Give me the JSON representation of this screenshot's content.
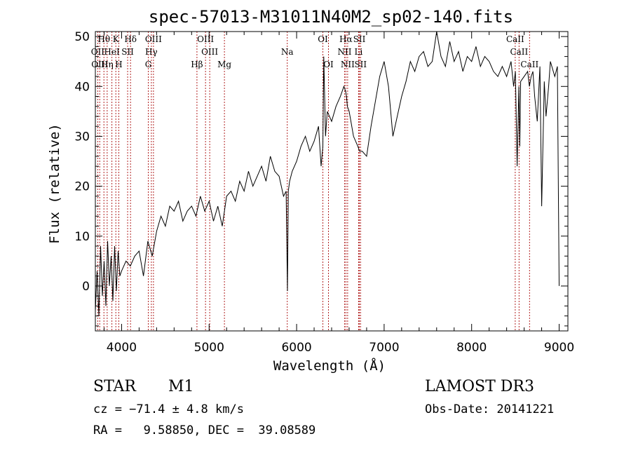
{
  "chart_data": {
    "type": "line",
    "title": "spec-57013-M31011N40M2_sp02-140.fits",
    "xlabel": "Wavelength (Å)",
    "ylabel": "Flux (relative)",
    "xlim": [
      3700,
      9100
    ],
    "ylim": [
      -9,
      51
    ],
    "xticks": [
      4000,
      5000,
      6000,
      7000,
      8000,
      9000
    ],
    "yticks": [
      0,
      10,
      20,
      30,
      40,
      50
    ],
    "series": [
      {
        "name": "spectrum",
        "x": [
          3700,
          3720,
          3740,
          3760,
          3780,
          3800,
          3820,
          3840,
          3860,
          3880,
          3900,
          3920,
          3940,
          3960,
          3980,
          4000,
          4050,
          4100,
          4150,
          4200,
          4250,
          4300,
          4350,
          4400,
          4450,
          4500,
          4550,
          4600,
          4650,
          4700,
          4750,
          4800,
          4850,
          4900,
          4950,
          5000,
          5050,
          5100,
          5150,
          5200,
          5250,
          5300,
          5350,
          5400,
          5450,
          5500,
          5550,
          5600,
          5650,
          5700,
          5750,
          5800,
          5850,
          5880,
          5895,
          5905,
          5920,
          5950,
          6000,
          6050,
          6100,
          6150,
          6200,
          6250,
          6280,
          6300,
          6310,
          6330,
          6350,
          6400,
          6450,
          6500,
          6540,
          6560,
          6570,
          6580,
          6600,
          6620,
          6650,
          6700,
          6720,
          6750,
          6800,
          6850,
          6900,
          6950,
          7000,
          7050,
          7100,
          7150,
          7200,
          7250,
          7300,
          7350,
          7400,
          7450,
          7500,
          7550,
          7600,
          7650,
          7700,
          7750,
          7800,
          7850,
          7900,
          7950,
          8000,
          8050,
          8100,
          8150,
          8200,
          8250,
          8300,
          8350,
          8400,
          8450,
          8480,
          8500,
          8520,
          8540,
          8550,
          8560,
          8600,
          8640,
          8660,
          8680,
          8700,
          8720,
          8750,
          8780,
          8800,
          8830,
          8850,
          8880,
          8900,
          8950,
          8980,
          9000
        ],
        "y": [
          -5,
          3,
          -6,
          8,
          -2,
          5,
          -4,
          9,
          0,
          6,
          -3,
          8,
          -1,
          7,
          2,
          3,
          5,
          4,
          6,
          7,
          2,
          9,
          6,
          11,
          14,
          12,
          16,
          15,
          17,
          13,
          15,
          16,
          14,
          18,
          15,
          17,
          13,
          16,
          12,
          18,
          19,
          17,
          21,
          19,
          23,
          20,
          22,
          24,
          21,
          26,
          23,
          22,
          18,
          19,
          -1,
          19,
          21,
          23,
          25,
          28,
          30,
          27,
          29,
          32,
          24,
          28,
          46,
          30,
          35,
          33,
          36,
          38,
          40,
          39,
          38,
          36,
          35,
          33,
          30,
          28,
          27,
          27,
          26,
          32,
          37,
          42,
          45,
          40,
          30,
          34,
          38,
          41,
          45,
          43,
          46,
          47,
          44,
          45,
          51,
          46,
          44,
          49,
          45,
          47,
          43,
          46,
          45,
          48,
          44,
          46,
          45,
          43,
          42,
          44,
          42,
          45,
          40,
          43,
          24,
          40,
          28,
          41,
          42,
          43,
          40,
          42,
          43,
          38,
          33,
          44,
          16,
          41,
          34,
          40,
          45,
          42,
          44,
          0
        ],
        "color": "#000000"
      }
    ],
    "emission_lines": [
      {
        "name": "Hθ",
        "wave": 3798,
        "row": 0
      },
      {
        "name": "K",
        "wave": 3934,
        "row": 0
      },
      {
        "name": "Hδ",
        "wave": 4102,
        "row": 0
      },
      {
        "name": "OIII",
        "wave": 4364,
        "row": 0
      },
      {
        "name": "OIII",
        "wave": 4959,
        "row": 0
      },
      {
        "name": "OI",
        "wave": 6300,
        "row": 0
      },
      {
        "name": "Hα",
        "wave": 6563,
        "row": 0
      },
      {
        "name": "SII",
        "wave": 6717,
        "row": 0
      },
      {
        "name": "CaII",
        "wave": 8498,
        "row": 0
      },
      {
        "name": "OII",
        "wave": 3727,
        "row": 1
      },
      {
        "name": "HeI",
        "wave": 3889,
        "row": 1
      },
      {
        "name": "SII",
        "wave": 4069,
        "row": 1
      },
      {
        "name": "Hγ",
        "wave": 4340,
        "row": 1
      },
      {
        "name": "OIII",
        "wave": 5007,
        "row": 1
      },
      {
        "name": "Na",
        "wave": 5893,
        "row": 1
      },
      {
        "name": "NII",
        "wave": 6548,
        "row": 1
      },
      {
        "name": "Li",
        "wave": 6708,
        "row": 1
      },
      {
        "name": "CaII",
        "wave": 8542,
        "row": 1
      },
      {
        "name": "OIII",
        "wave": 3750,
        "row": 2
      },
      {
        "name": "Hη",
        "wave": 3835,
        "row": 2
      },
      {
        "name": "H",
        "wave": 3968,
        "row": 2
      },
      {
        "name": "G",
        "wave": 4305,
        "row": 2
      },
      {
        "name": "Hβ",
        "wave": 4861,
        "row": 2
      },
      {
        "name": "Mg",
        "wave": 5175,
        "row": 2
      },
      {
        "name": "OI",
        "wave": 6364,
        "row": 2
      },
      {
        "name": "NII",
        "wave": 6583,
        "row": 2
      },
      {
        "name": "SII",
        "wave": 6731,
        "row": 2
      },
      {
        "name": "CaII",
        "wave": 8662,
        "row": 2
      }
    ]
  },
  "info": {
    "object_class": "STAR",
    "subclass": "M1",
    "survey": "LAMOST DR3",
    "cz": "cz = −71.4 ± 4.8 km/s",
    "obs_date": "Obs-Date: 20141221",
    "coords": "RA =   9.58850, DEC =  39.08589"
  }
}
